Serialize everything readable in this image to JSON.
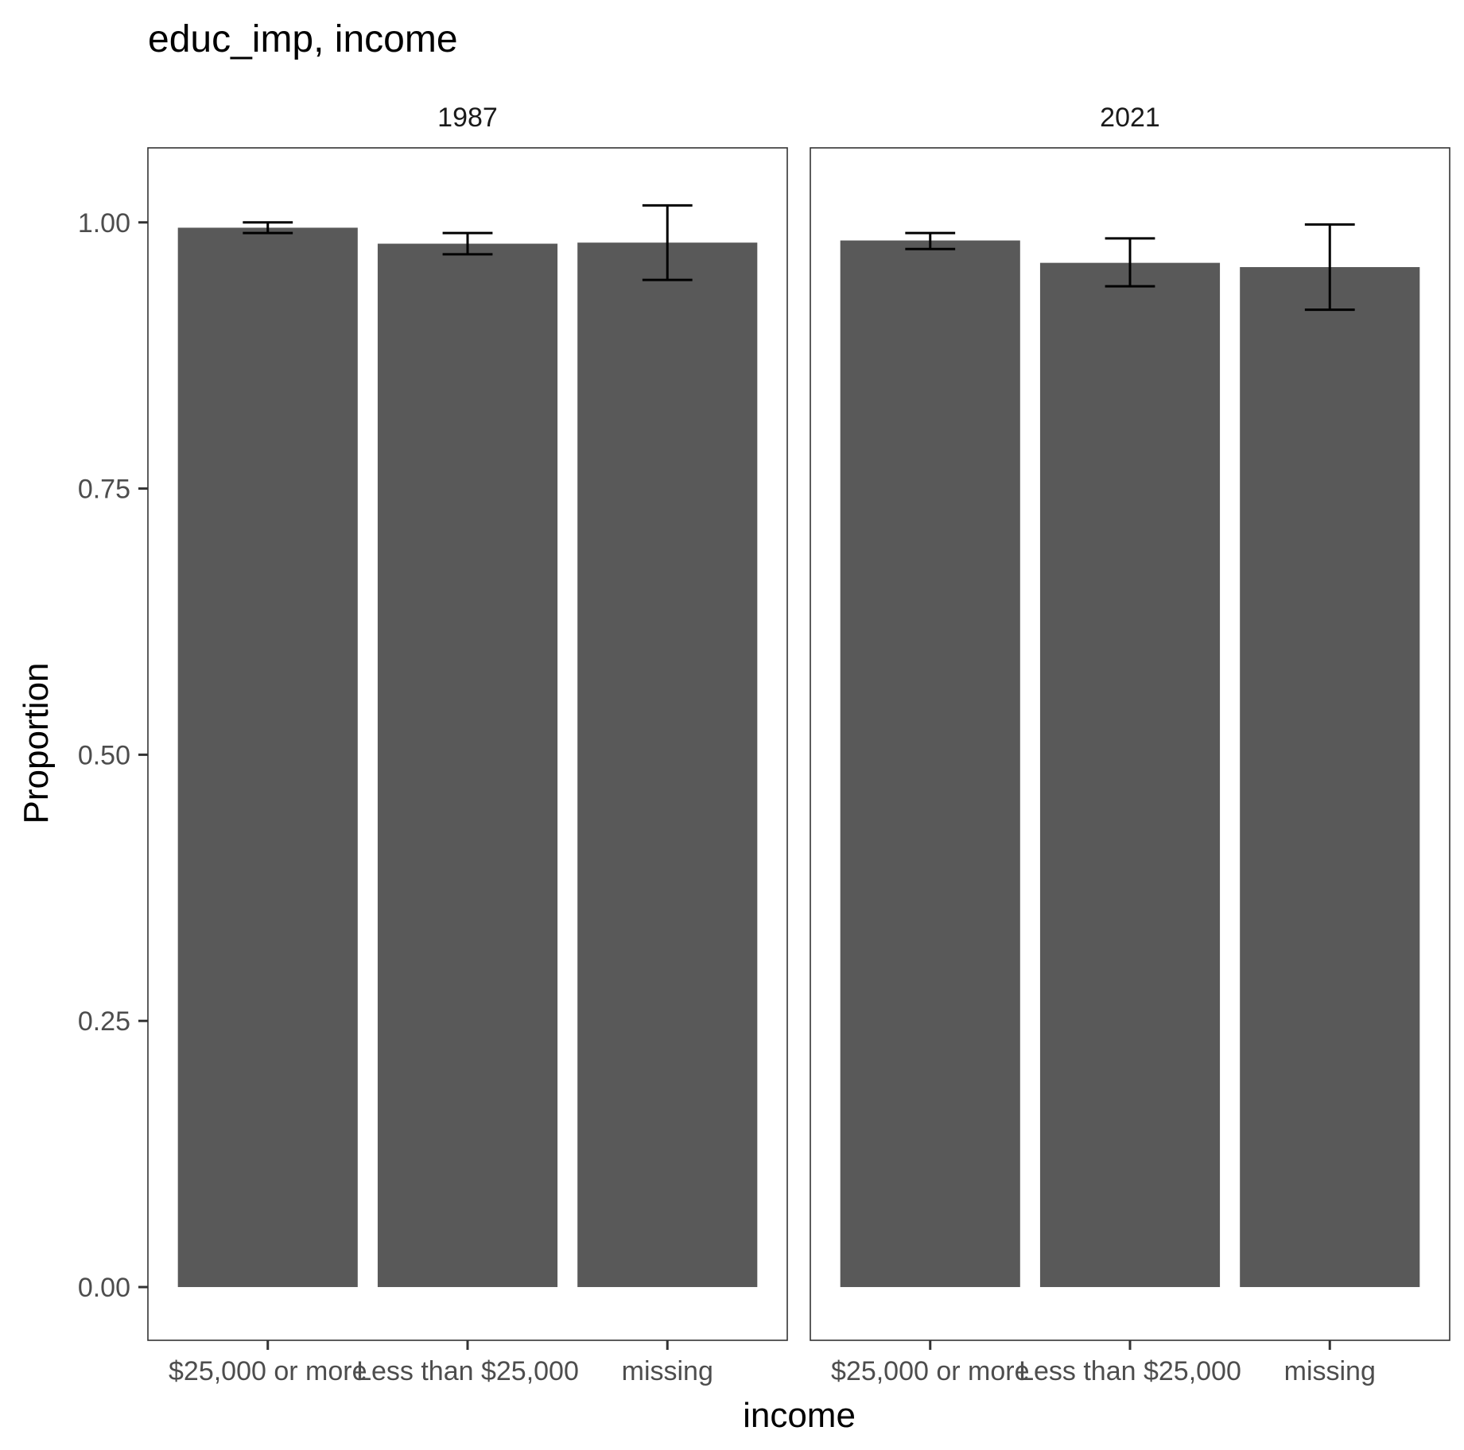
{
  "chart_data": {
    "type": "bar",
    "title": "educ_imp, income",
    "xlabel": "income",
    "ylabel": "Proportion",
    "ylim": [
      -0.05,
      1.07
    ],
    "y_ticks": [
      "0.00",
      "0.25",
      "0.50",
      "0.75",
      "1.00"
    ],
    "categories": [
      "$25,000 or more",
      "Less than $25,000",
      "missing"
    ],
    "panels": [
      {
        "label": "1987",
        "values": [
          0.995,
          0.98,
          0.981
        ],
        "error_low": [
          0.99,
          0.97,
          0.946
        ],
        "error_high": [
          1.0,
          0.99,
          1.016
        ]
      },
      {
        "label": "2021",
        "values": [
          0.983,
          0.962,
          0.958
        ],
        "error_low": [
          0.975,
          0.94,
          0.918
        ],
        "error_high": [
          0.99,
          0.985,
          0.998
        ]
      }
    ],
    "grid": false,
    "legend": "none"
  }
}
